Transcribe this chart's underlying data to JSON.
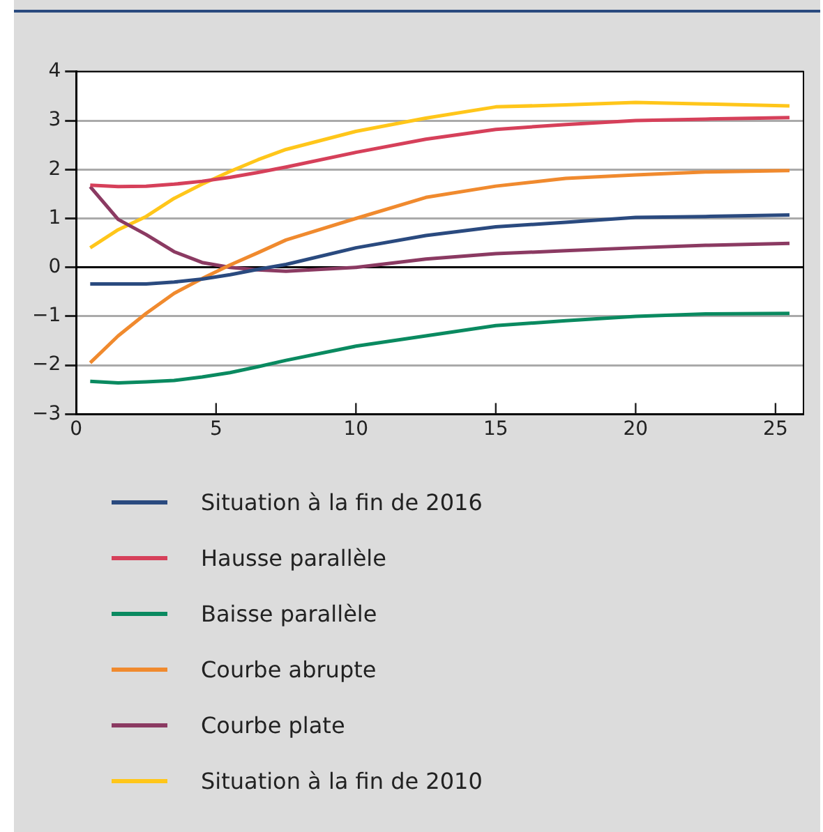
{
  "chart_data": {
    "type": "line",
    "x": [
      0.5,
      1.5,
      2.5,
      3.5,
      4.5,
      5.5,
      6.5,
      7.5,
      10,
      12.5,
      15,
      17.5,
      20,
      22.5,
      25.5
    ],
    "xlim": [
      0,
      26
    ],
    "xticks": [
      0,
      5,
      10,
      15,
      20,
      25
    ],
    "ylim": [
      -3,
      4
    ],
    "yticks": [
      -3,
      -2,
      -1,
      0,
      1,
      2,
      3,
      4
    ],
    "grid": "y",
    "legend": "bottom",
    "marker": "none",
    "line_style": "solid",
    "series": [
      {
        "name": "Situation à la fin de 2016",
        "color": "#2a4a7f",
        "values": [
          -0.34,
          -0.34,
          -0.34,
          -0.3,
          -0.24,
          -0.15,
          -0.04,
          0.06,
          0.4,
          0.65,
          0.83,
          0.92,
          1.02,
          1.04,
          1.07
        ]
      },
      {
        "name": "Hausse parallèle",
        "color": "#d6405a",
        "values": [
          1.68,
          1.65,
          1.66,
          1.7,
          1.76,
          1.84,
          1.94,
          2.05,
          2.35,
          2.62,
          2.82,
          2.92,
          3.0,
          3.03,
          3.06
        ]
      },
      {
        "name": "Baisse parallèle",
        "color": "#0a8a60",
        "values": [
          -2.33,
          -2.36,
          -2.34,
          -2.31,
          -2.24,
          -2.15,
          -2.03,
          -1.9,
          -1.61,
          -1.4,
          -1.19,
          -1.09,
          -1.0,
          -0.95,
          -0.94
        ]
      },
      {
        "name": "Courbe abrupte",
        "color": "#f08a2e",
        "values": [
          -1.95,
          -1.4,
          -0.94,
          -0.53,
          -0.23,
          0.05,
          0.3,
          0.56,
          1.0,
          1.43,
          1.66,
          1.82,
          1.89,
          1.95,
          1.98
        ]
      },
      {
        "name": "Courbe plate",
        "color": "#8b3a62",
        "values": [
          1.65,
          0.98,
          0.67,
          0.32,
          0.1,
          0.0,
          -0.05,
          -0.08,
          0.0,
          0.17,
          0.28,
          0.34,
          0.4,
          0.45,
          0.49
        ]
      },
      {
        "name": "Situation à la fin de 2010",
        "color": "#ffc61a",
        "values": [
          0.4,
          0.77,
          1.04,
          1.41,
          1.7,
          1.96,
          2.2,
          2.41,
          2.78,
          3.05,
          3.28,
          3.32,
          3.37,
          3.34,
          3.3
        ]
      }
    ]
  }
}
